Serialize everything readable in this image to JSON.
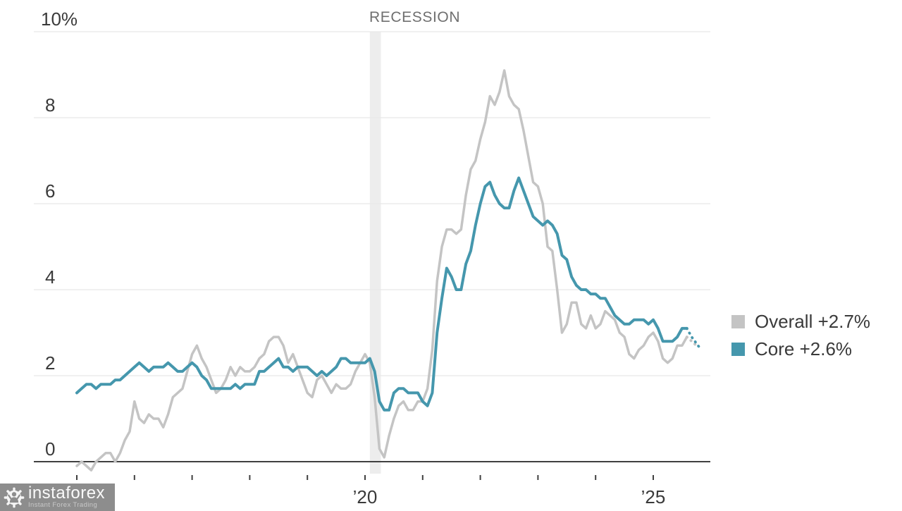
{
  "chart_data": {
    "type": "line",
    "title": "",
    "recession_label": "RECESSION",
    "x_start": "2015-01",
    "x_end_solid": "2025-08",
    "frequency": "monthly",
    "grid": true,
    "legend_position": "right",
    "colors": {
      "overall": "#c4c4c4",
      "core": "#4597ad",
      "recession_band": "#ededed",
      "axis": "#404040",
      "gridline": "#e8e8e8",
      "label_text": "#3a3a3a"
    },
    "y_axis": {
      "unit": "%",
      "range": [
        -0.5,
        10
      ],
      "ticks": [
        {
          "value": 10,
          "label": "10%"
        },
        {
          "value": 8,
          "label": "8"
        },
        {
          "value": 6,
          "label": "6"
        },
        {
          "value": 4,
          "label": "4"
        },
        {
          "value": 2,
          "label": "2"
        },
        {
          "value": 0,
          "label": "0"
        }
      ]
    },
    "x_axis": {
      "tick_years": [
        2015,
        2016,
        2017,
        2018,
        2019,
        2020,
        2021,
        2022,
        2023,
        2024,
        2025
      ],
      "labels": [
        {
          "year": 2020,
          "label": "’20"
        },
        {
          "year": 2025,
          "label": "’25"
        }
      ]
    },
    "recession_band": {
      "start": "2020-02",
      "end": "2020-04"
    },
    "series": [
      {
        "name": "Overall",
        "legend_label": "Overall +2.7%",
        "latest_value": 2.7,
        "color": "#c4c4c4",
        "values": [
          -0.1,
          0.0,
          -0.1,
          -0.2,
          0.0,
          0.1,
          0.2,
          0.2,
          0.0,
          0.2,
          0.5,
          0.7,
          1.4,
          1.0,
          0.9,
          1.1,
          1.0,
          1.0,
          0.8,
          1.1,
          1.5,
          1.6,
          1.7,
          2.1,
          2.5,
          2.7,
          2.4,
          2.2,
          1.9,
          1.6,
          1.7,
          1.9,
          2.2,
          2.0,
          2.2,
          2.1,
          2.1,
          2.2,
          2.4,
          2.5,
          2.8,
          2.9,
          2.9,
          2.7,
          2.3,
          2.5,
          2.2,
          1.9,
          1.6,
          1.5,
          1.9,
          2.0,
          1.8,
          1.6,
          1.8,
          1.7,
          1.7,
          1.8,
          2.1,
          2.3,
          2.5,
          2.3,
          1.5,
          0.3,
          0.1,
          0.6,
          1.0,
          1.3,
          1.4,
          1.2,
          1.2,
          1.4,
          1.4,
          1.7,
          2.6,
          4.2,
          5.0,
          5.4,
          5.4,
          5.3,
          5.4,
          6.2,
          6.8,
          7.0,
          7.5,
          7.9,
          8.5,
          8.3,
          8.6,
          9.1,
          8.5,
          8.3,
          8.2,
          7.7,
          7.1,
          6.5,
          6.4,
          6.0,
          5.0,
          4.9,
          4.0,
          3.0,
          3.2,
          3.7,
          3.7,
          3.2,
          3.1,
          3.4,
          3.1,
          3.2,
          3.5,
          3.4,
          3.3,
          3.0,
          2.9,
          2.5,
          2.4,
          2.6,
          2.7,
          2.9,
          3.0,
          2.8,
          2.4,
          2.3,
          2.4,
          2.7,
          2.7,
          2.9
        ],
        "projection": [
          2.8,
          2.7
        ]
      },
      {
        "name": "Core",
        "legend_label": "Core +2.6%",
        "latest_value": 2.6,
        "color": "#4597ad",
        "values": [
          1.6,
          1.7,
          1.8,
          1.8,
          1.7,
          1.8,
          1.8,
          1.8,
          1.9,
          1.9,
          2.0,
          2.1,
          2.2,
          2.3,
          2.2,
          2.1,
          2.2,
          2.2,
          2.2,
          2.3,
          2.2,
          2.1,
          2.1,
          2.2,
          2.3,
          2.2,
          2.0,
          1.9,
          1.7,
          1.7,
          1.7,
          1.7,
          1.7,
          1.8,
          1.7,
          1.8,
          1.8,
          1.8,
          2.1,
          2.1,
          2.2,
          2.3,
          2.4,
          2.2,
          2.2,
          2.1,
          2.2,
          2.2,
          2.2,
          2.1,
          2.0,
          2.1,
          2.0,
          2.1,
          2.2,
          2.4,
          2.4,
          2.3,
          2.3,
          2.3,
          2.3,
          2.4,
          2.1,
          1.4,
          1.2,
          1.2,
          1.6,
          1.7,
          1.7,
          1.6,
          1.6,
          1.6,
          1.4,
          1.3,
          1.6,
          3.0,
          3.8,
          4.5,
          4.3,
          4.0,
          4.0,
          4.6,
          4.9,
          5.5,
          6.0,
          6.4,
          6.5,
          6.2,
          6.0,
          5.9,
          5.9,
          6.3,
          6.6,
          6.3,
          6.0,
          5.7,
          5.6,
          5.5,
          5.6,
          5.5,
          5.3,
          4.8,
          4.7,
          4.3,
          4.1,
          4.0,
          4.0,
          3.9,
          3.9,
          3.8,
          3.8,
          3.6,
          3.4,
          3.3,
          3.2,
          3.2,
          3.3,
          3.3,
          3.3,
          3.2,
          3.3,
          3.1,
          2.8,
          2.8,
          2.8,
          2.9,
          3.1,
          3.1
        ],
        "projection": [
          2.9,
          2.75,
          2.6
        ]
      }
    ]
  },
  "legend": {
    "items": [
      {
        "label": "Overall +2.7%"
      },
      {
        "label": "Core +2.6%"
      }
    ]
  },
  "watermark": {
    "brand": "instaforex",
    "tagline": "Instant Forex Trading"
  }
}
